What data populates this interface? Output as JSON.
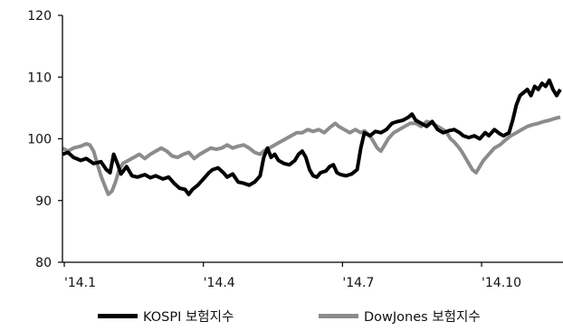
{
  "chart_data": {
    "type": "line",
    "title": "",
    "xlabel": "",
    "ylabel": "",
    "ylim": [
      80,
      120
    ],
    "yticks": [
      80,
      90,
      100,
      110,
      120
    ],
    "x_tick_labels": [
      "'14.1",
      "'14.4",
      "'14.7",
      "'14.10"
    ],
    "x_tick_positions": [
      1,
      77,
      153,
      229
    ],
    "x_range": [
      0,
      272
    ],
    "grid": false,
    "legend_position": "bottom",
    "series": [
      {
        "name": "KOSPI 보험지수",
        "color": "#000000",
        "points": [
          [
            0,
            97.5
          ],
          [
            3,
            97.8
          ],
          [
            6,
            97.0
          ],
          [
            10,
            96.5
          ],
          [
            13,
            96.8
          ],
          [
            17,
            96.0
          ],
          [
            21,
            96.3
          ],
          [
            24,
            95.0
          ],
          [
            26,
            94.5
          ],
          [
            28,
            97.5
          ],
          [
            30,
            96.0
          ],
          [
            32,
            94.3
          ],
          [
            35,
            95.5
          ],
          [
            38,
            94.0
          ],
          [
            41,
            93.8
          ],
          [
            45,
            94.2
          ],
          [
            48,
            93.7
          ],
          [
            51,
            94.0
          ],
          [
            55,
            93.5
          ],
          [
            58,
            93.8
          ],
          [
            61,
            92.8
          ],
          [
            64,
            92.0
          ],
          [
            67,
            91.8
          ],
          [
            69,
            91.0
          ],
          [
            71,
            91.8
          ],
          [
            74,
            92.5
          ],
          [
            77,
            93.5
          ],
          [
            80,
            94.5
          ],
          [
            82,
            95.0
          ],
          [
            85,
            95.3
          ],
          [
            88,
            94.5
          ],
          [
            90,
            93.8
          ],
          [
            93,
            94.3
          ],
          [
            96,
            93.0
          ],
          [
            99,
            92.8
          ],
          [
            102,
            92.5
          ],
          [
            105,
            93.0
          ],
          [
            108,
            94.0
          ],
          [
            110,
            97.0
          ],
          [
            112,
            98.5
          ],
          [
            114,
            97.0
          ],
          [
            116,
            97.5
          ],
          [
            118,
            96.5
          ],
          [
            121,
            96.0
          ],
          [
            124,
            95.8
          ],
          [
            127,
            96.5
          ],
          [
            129,
            97.5
          ],
          [
            131,
            98.0
          ],
          [
            133,
            97.0
          ],
          [
            135,
            95.0
          ],
          [
            137,
            94.0
          ],
          [
            139,
            93.8
          ],
          [
            141,
            94.5
          ],
          [
            144,
            94.8
          ],
          [
            146,
            95.5
          ],
          [
            148,
            95.8
          ],
          [
            150,
            94.5
          ],
          [
            152,
            94.2
          ],
          [
            155,
            94.0
          ],
          [
            158,
            94.3
          ],
          [
            161,
            95.0
          ],
          [
            163,
            98.5
          ],
          [
            165,
            101.0
          ],
          [
            168,
            100.5
          ],
          [
            171,
            101.2
          ],
          [
            174,
            101.0
          ],
          [
            177,
            101.5
          ],
          [
            180,
            102.5
          ],
          [
            183,
            102.8
          ],
          [
            186,
            103.0
          ],
          [
            189,
            103.5
          ],
          [
            191,
            104.0
          ],
          [
            193,
            103.0
          ],
          [
            196,
            102.5
          ],
          [
            199,
            102.0
          ],
          [
            202,
            102.8
          ],
          [
            205,
            101.5
          ],
          [
            208,
            101.0
          ],
          [
            211,
            101.3
          ],
          [
            214,
            101.5
          ],
          [
            217,
            101.0
          ],
          [
            219,
            100.5
          ],
          [
            222,
            100.2
          ],
          [
            225,
            100.5
          ],
          [
            228,
            100.0
          ],
          [
            231,
            101.0
          ],
          [
            233,
            100.5
          ],
          [
            236,
            101.5
          ],
          [
            239,
            100.8
          ],
          [
            241,
            100.5
          ],
          [
            244,
            101.0
          ],
          [
            246,
            103.0
          ],
          [
            248,
            105.5
          ],
          [
            250,
            107.0
          ],
          [
            252,
            107.5
          ],
          [
            254,
            108.0
          ],
          [
            256,
            107.0
          ],
          [
            258,
            108.5
          ],
          [
            260,
            108.0
          ],
          [
            262,
            109.0
          ],
          [
            264,
            108.5
          ],
          [
            266,
            109.5
          ],
          [
            268,
            108.0
          ],
          [
            270,
            107.0
          ],
          [
            272,
            108.0
          ]
        ]
      },
      {
        "name": "DowJones 보험지수",
        "color": "#8c8c8c",
        "points": [
          [
            0,
            98.5
          ],
          [
            3,
            98.0
          ],
          [
            6,
            98.5
          ],
          [
            10,
            98.8
          ],
          [
            13,
            99.2
          ],
          [
            15,
            99.0
          ],
          [
            17,
            98.0
          ],
          [
            19,
            96.0
          ],
          [
            21,
            94.0
          ],
          [
            23,
            92.5
          ],
          [
            25,
            91.0
          ],
          [
            27,
            91.5
          ],
          [
            29,
            93.0
          ],
          [
            31,
            95.0
          ],
          [
            33,
            96.0
          ],
          [
            36,
            96.5
          ],
          [
            39,
            97.0
          ],
          [
            42,
            97.5
          ],
          [
            45,
            96.8
          ],
          [
            48,
            97.5
          ],
          [
            51,
            98.0
          ],
          [
            54,
            98.5
          ],
          [
            57,
            98.0
          ],
          [
            60,
            97.2
          ],
          [
            63,
            97.0
          ],
          [
            66,
            97.5
          ],
          [
            69,
            97.8
          ],
          [
            72,
            96.8
          ],
          [
            75,
            97.5
          ],
          [
            78,
            98.0
          ],
          [
            81,
            98.5
          ],
          [
            84,
            98.3
          ],
          [
            87,
            98.5
          ],
          [
            90,
            99.0
          ],
          [
            93,
            98.5
          ],
          [
            96,
            98.8
          ],
          [
            99,
            99.0
          ],
          [
            102,
            98.5
          ],
          [
            105,
            97.8
          ],
          [
            108,
            97.5
          ],
          [
            110,
            98.0
          ],
          [
            113,
            98.5
          ],
          [
            116,
            99.0
          ],
          [
            119,
            99.5
          ],
          [
            122,
            100.0
          ],
          [
            125,
            100.5
          ],
          [
            128,
            101.0
          ],
          [
            131,
            101.0
          ],
          [
            134,
            101.5
          ],
          [
            137,
            101.2
          ],
          [
            140,
            101.5
          ],
          [
            143,
            101.0
          ],
          [
            146,
            101.8
          ],
          [
            149,
            102.5
          ],
          [
            151,
            102.0
          ],
          [
            154,
            101.5
          ],
          [
            157,
            101.0
          ],
          [
            160,
            101.5
          ],
          [
            163,
            101.0
          ],
          [
            165,
            101.3
          ],
          [
            168,
            100.5
          ],
          [
            170,
            99.5
          ],
          [
            172,
            98.5
          ],
          [
            174,
            98.0
          ],
          [
            176,
            99.0
          ],
          [
            178,
            100.0
          ],
          [
            181,
            101.0
          ],
          [
            184,
            101.5
          ],
          [
            187,
            102.0
          ],
          [
            190,
            102.5
          ],
          [
            193,
            102.5
          ],
          [
            196,
            102.0
          ],
          [
            199,
            102.8
          ],
          [
            202,
            102.5
          ],
          [
            205,
            102.0
          ],
          [
            208,
            101.5
          ],
          [
            210,
            101.0
          ],
          [
            212,
            100.0
          ],
          [
            214,
            99.5
          ],
          [
            216,
            98.8
          ],
          [
            218,
            98.0
          ],
          [
            220,
            97.0
          ],
          [
            222,
            96.0
          ],
          [
            224,
            95.0
          ],
          [
            226,
            94.5
          ],
          [
            228,
            95.5
          ],
          [
            230,
            96.5
          ],
          [
            233,
            97.5
          ],
          [
            236,
            98.5
          ],
          [
            239,
            99.0
          ],
          [
            242,
            99.8
          ],
          [
            245,
            100.5
          ],
          [
            248,
            101.0
          ],
          [
            251,
            101.5
          ],
          [
            254,
            102.0
          ],
          [
            257,
            102.3
          ],
          [
            260,
            102.5
          ],
          [
            263,
            102.8
          ],
          [
            266,
            103.0
          ],
          [
            269,
            103.3
          ],
          [
            272,
            103.5
          ]
        ]
      }
    ]
  }
}
